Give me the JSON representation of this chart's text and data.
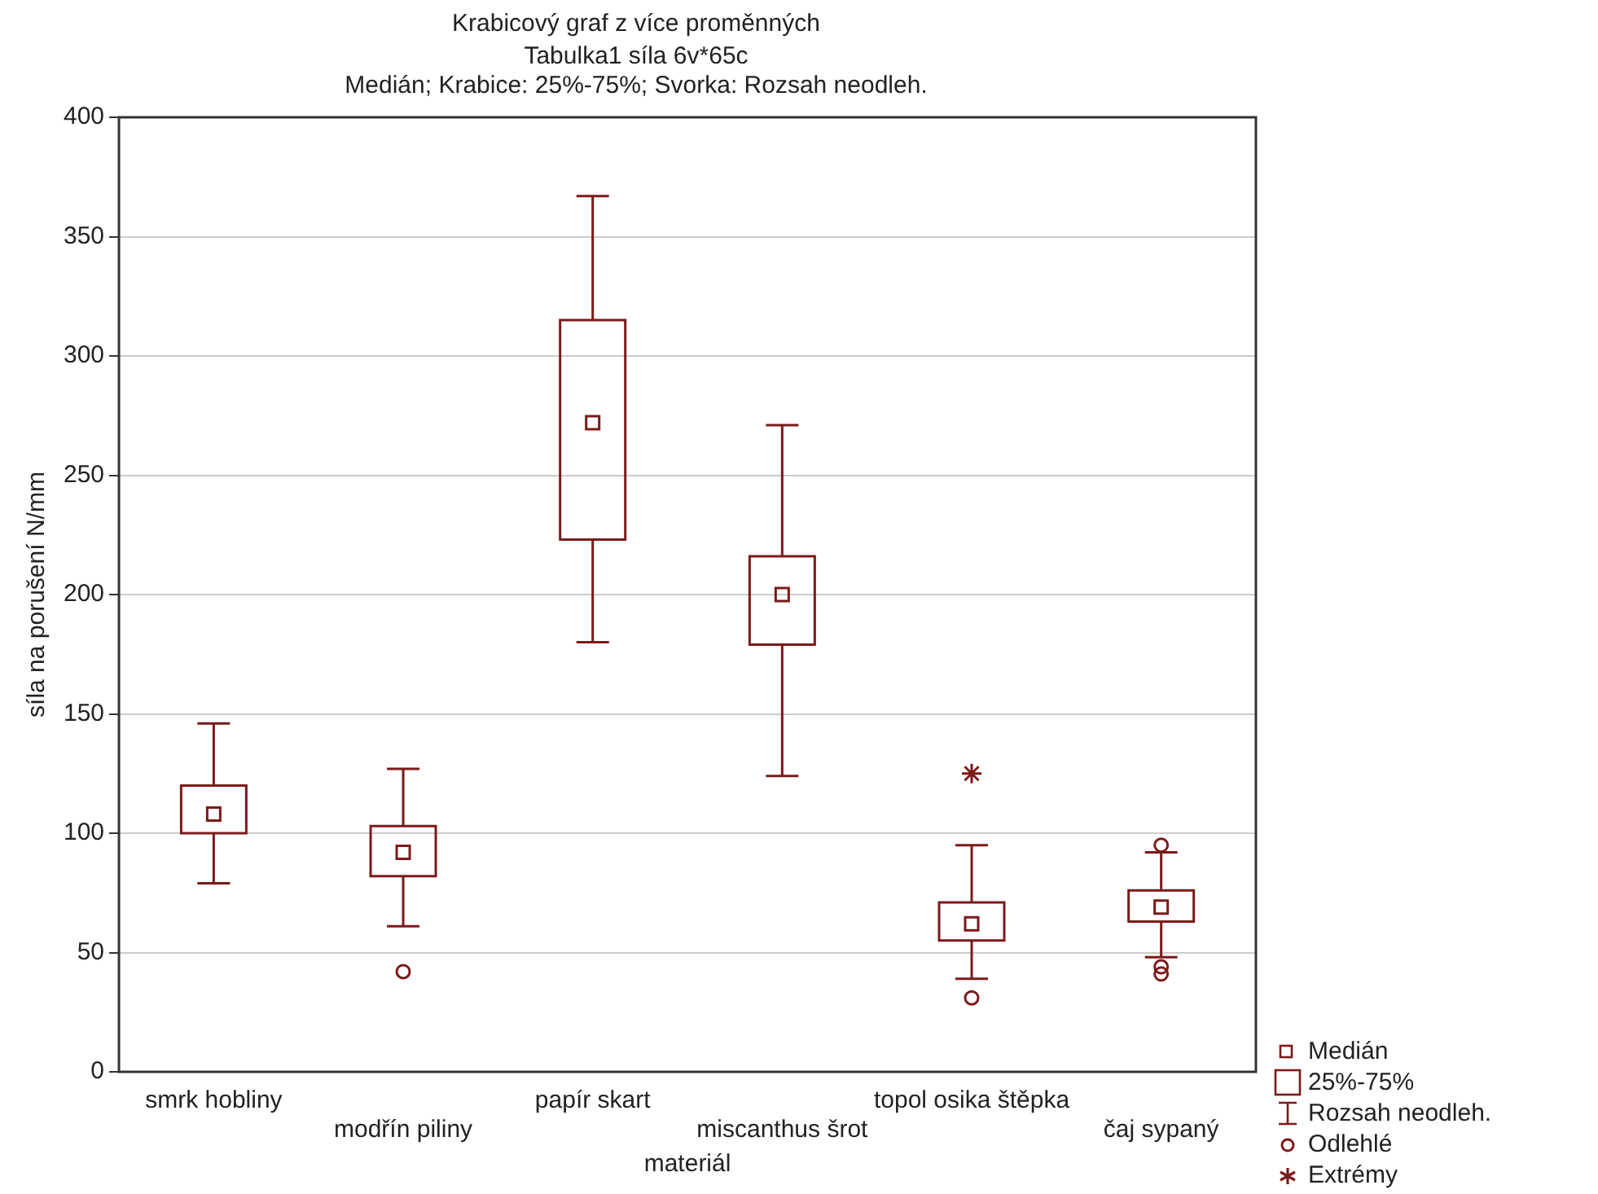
{
  "chart_data": {
    "type": "box",
    "title": "Krabicový graf z více proměnných",
    "subtitle": "Tabulka1 síla 6v*65c\nMedián; Krabice: 25%-75%; Svorka: Rozsah neodleh.",
    "xlabel": "materiál",
    "ylabel": "síla na porušení N/mm",
    "color": "#7b1a1a",
    "categories": [
      "smrk hobliny",
      "modřín piliny",
      "papír skart",
      "miscanthus šrot",
      "topol osika štěpka",
      "čaj sypaný"
    ],
    "boxes": [
      {
        "low": 79,
        "q1": 100,
        "median": 108,
        "q3": 120,
        "high": 146
      },
      {
        "low": 61,
        "q1": 82,
        "median": 92,
        "q3": 103,
        "high": 127,
        "outliers": [
          42
        ]
      },
      {
        "low": 180,
        "q1": 223,
        "median": 272,
        "q3": 315,
        "high": 367
      },
      {
        "low": 124,
        "q1": 179,
        "median": 200,
        "q3": 216,
        "high": 271
      },
      {
        "low": 39,
        "q1": 55,
        "median": 62,
        "q3": 71,
        "high": 95,
        "outliers": [
          31
        ]
      },
      {
        "low": 48,
        "q1": 63,
        "median": 69,
        "q3": 76,
        "high": 92,
        "outliers": [
          95,
          44,
          41
        ]
      }
    ],
    "series": [
      {
        "name": "Extrémy",
        "type": "scatter",
        "color": "#7b1a1a",
        "marker": "cross",
        "x": [
          "topol osika štěpka"
        ],
        "values": [
          125
        ]
      }
    ],
    "annotations": [
      "Medián",
      "25%-75%",
      "Rozsah neodleh.",
      "Odlehlé"
    ],
    "ylim": [
      0,
      400
    ],
    "yticks": [
      0,
      50,
      100,
      150,
      200,
      250,
      300,
      350,
      400
    ],
    "grid": "y",
    "legend": "bottom right"
  }
}
